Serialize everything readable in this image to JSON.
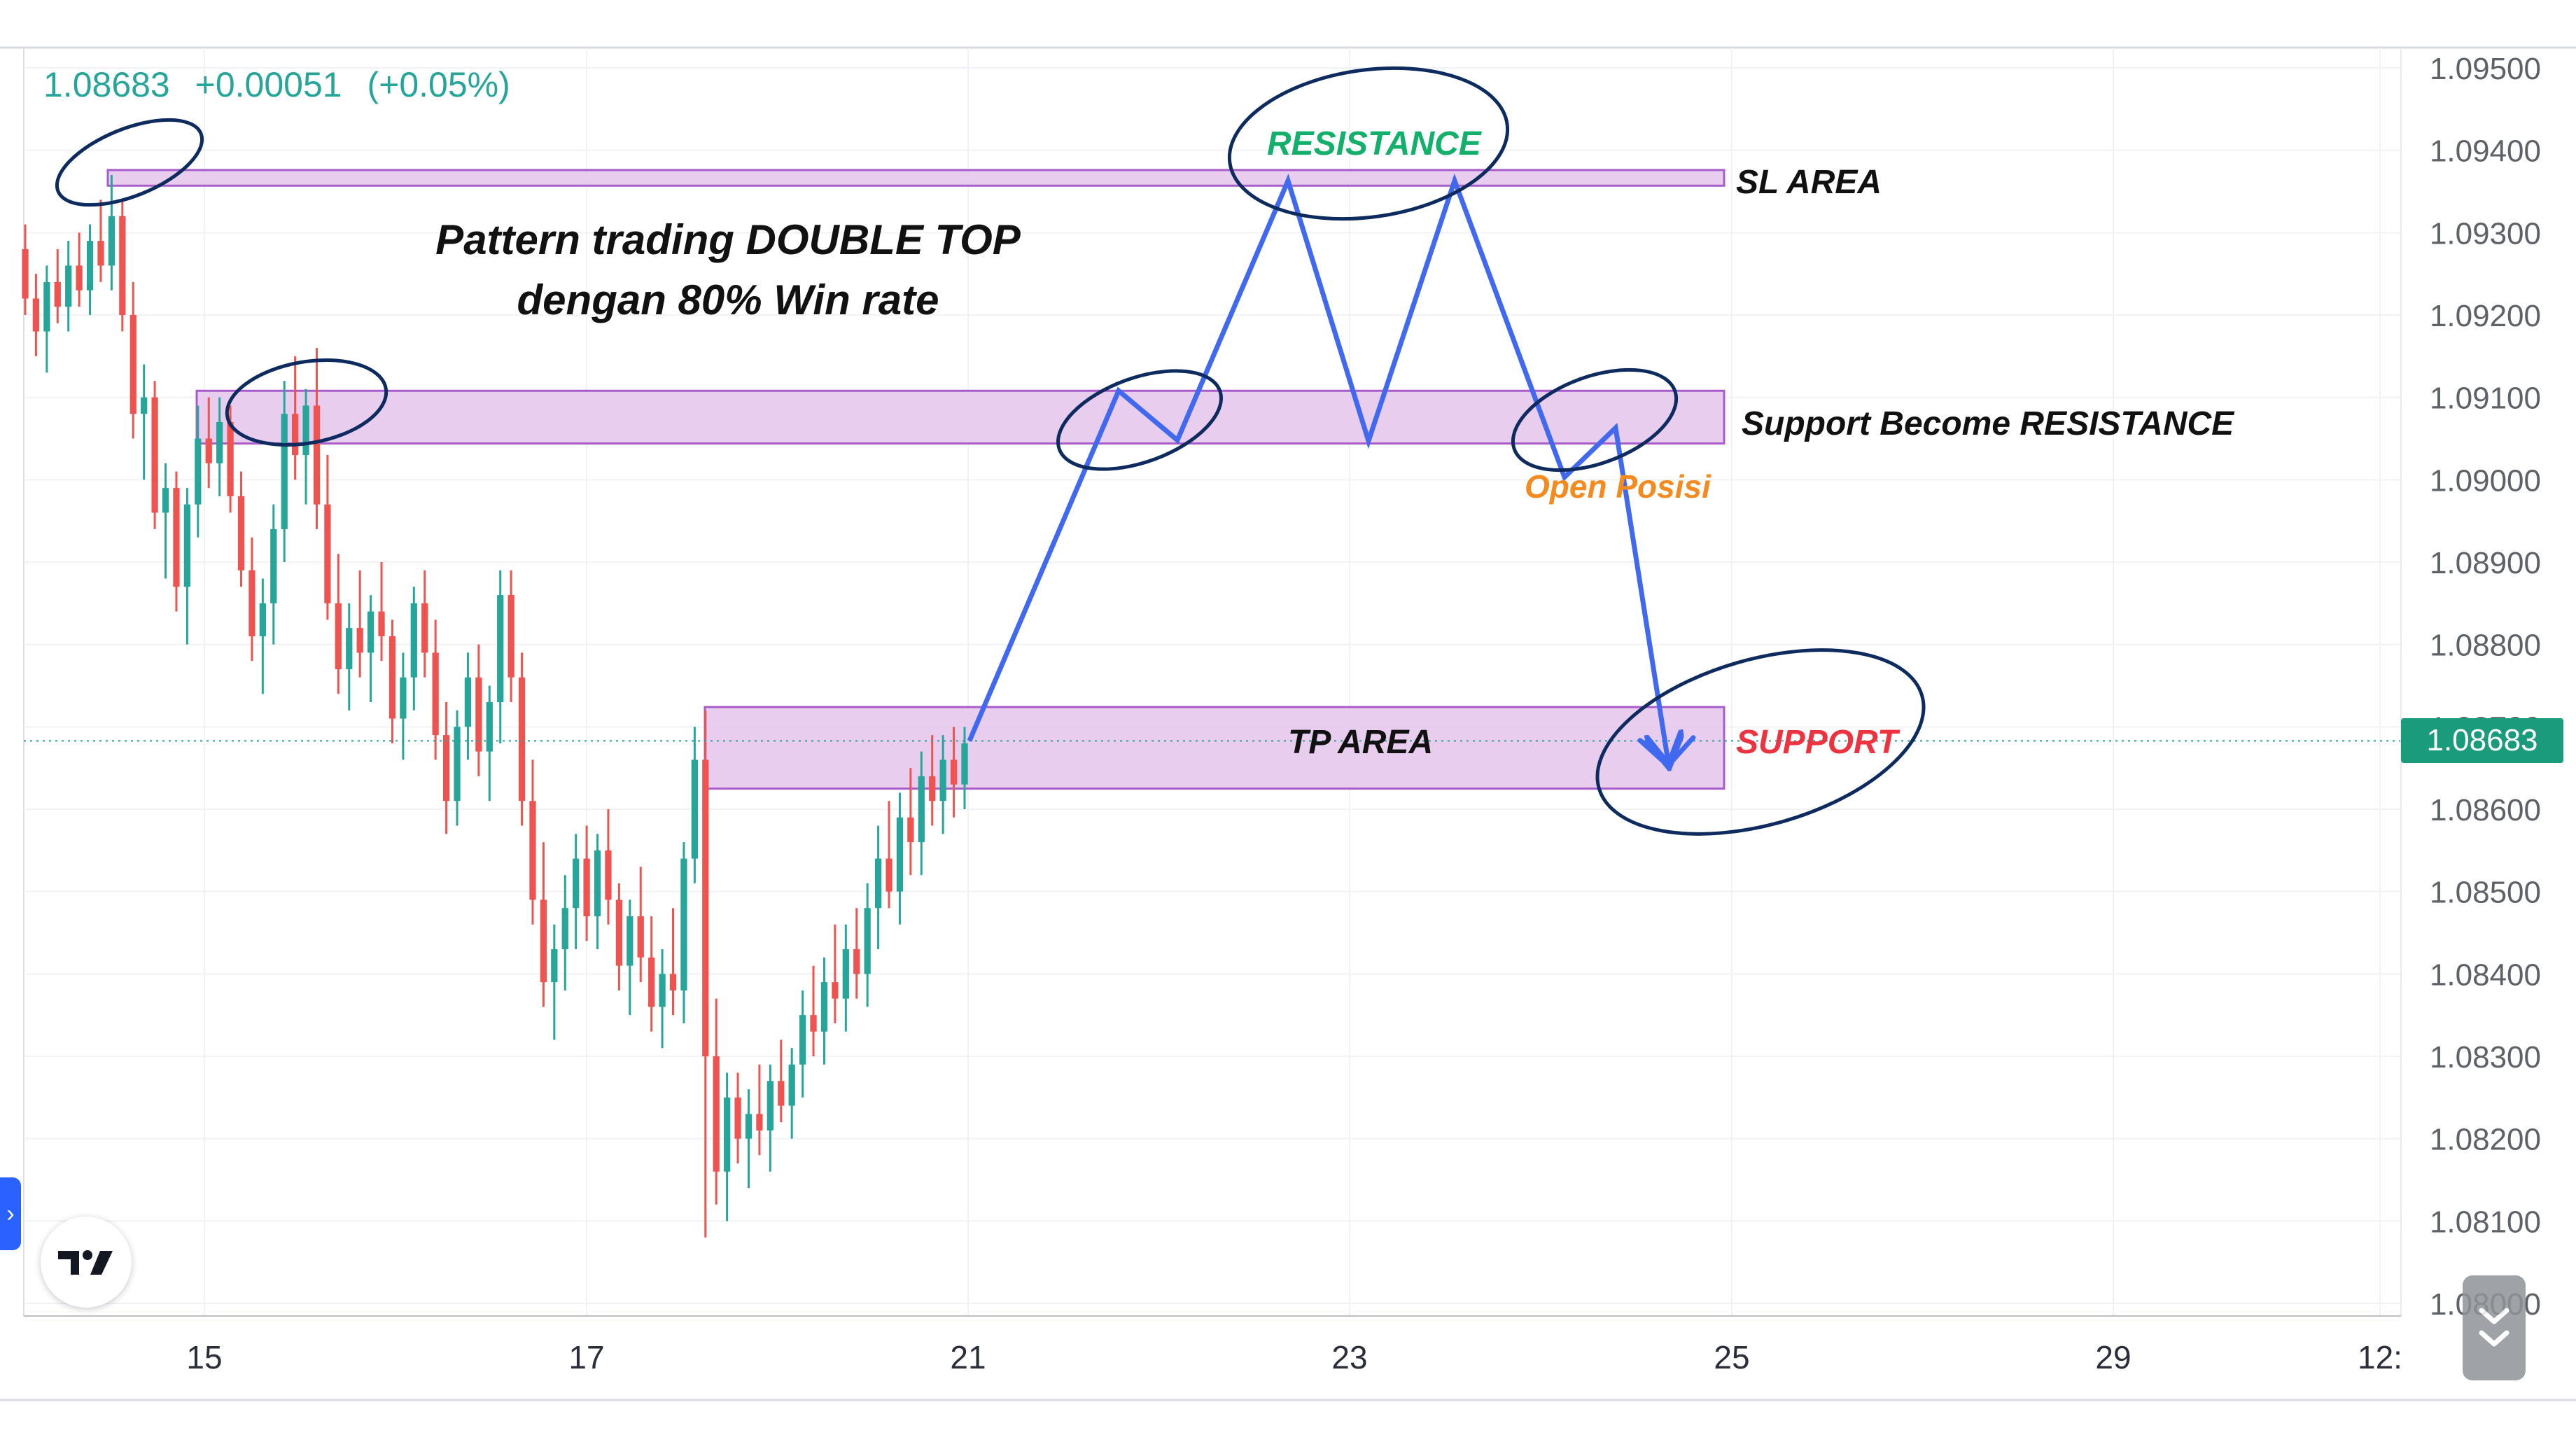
{
  "quote": {
    "price": "1.08683",
    "change": "+0.00051",
    "change_pct": "(+0.05%)",
    "current_price_tag": "1.08683"
  },
  "annotations": {
    "title_line1": "Pattern trading DOUBLE TOP",
    "title_line2": "dengan 80% Win rate",
    "resistance": "RESISTANCE",
    "sl_area": "SL AREA",
    "support_become_resistance": "Support Become RESISTANCE",
    "open_posisi": "Open Posisi",
    "tp_area": "TP AREA",
    "support": "SUPPORT"
  },
  "colors": {
    "up": "#26a69a",
    "down": "#ef5350",
    "zone_fill": "#e6c8ee",
    "zone_border": "#a04cc6",
    "projection_line": "#4169f0",
    "ellipse": "#0d2b5e",
    "resistance_text": "#13b06b",
    "support_text": "#ee3340",
    "open_text": "#f58a1f"
  },
  "chart_data": {
    "type": "candlestick",
    "symbol_price": 1.08683,
    "x_tick_labels": [
      "15",
      "17",
      "21",
      "23",
      "25",
      "29",
      "12:"
    ],
    "y_tick_labels": [
      "1.09500",
      "1.09400",
      "1.09300",
      "1.09200",
      "1.09100",
      "1.09000",
      "1.08900",
      "1.08800",
      "1.08700",
      "1.08600",
      "1.08500",
      "1.08400",
      "1.08300",
      "1.08200",
      "1.08100",
      "1.08000"
    ],
    "ylim": [
      1.08,
      1.095
    ],
    "grid": true,
    "candles": [
      [
        1.0928,
        1.0931,
        1.092,
        1.0922
      ],
      [
        1.0922,
        1.0925,
        1.0915,
        1.0918
      ],
      [
        1.0918,
        1.0926,
        1.0913,
        1.0924
      ],
      [
        1.0924,
        1.0928,
        1.0919,
        1.0921
      ],
      [
        1.0921,
        1.0929,
        1.0918,
        1.0926
      ],
      [
        1.0926,
        1.093,
        1.0921,
        1.0923
      ],
      [
        1.0923,
        1.0931,
        1.092,
        1.0929
      ],
      [
        1.0929,
        1.0934,
        1.0924,
        1.0926
      ],
      [
        1.0926,
        1.0937,
        1.0923,
        1.0932
      ],
      [
        1.0932,
        1.0934,
        1.0918,
        1.092
      ],
      [
        1.092,
        1.0924,
        1.0905,
        1.0908
      ],
      [
        1.0908,
        1.0914,
        1.09,
        1.091
      ],
      [
        1.091,
        1.0912,
        1.0894,
        1.0896
      ],
      [
        1.0896,
        1.0902,
        1.0888,
        1.0899
      ],
      [
        1.0899,
        1.0901,
        1.0884,
        1.0887
      ],
      [
        1.0887,
        1.0899,
        1.088,
        1.0897
      ],
      [
        1.0897,
        1.0909,
        1.0893,
        1.0905
      ],
      [
        1.0905,
        1.091,
        1.0899,
        1.0902
      ],
      [
        1.0902,
        1.091,
        1.0898,
        1.0907
      ],
      [
        1.0907,
        1.0909,
        1.0896,
        1.0898
      ],
      [
        1.0898,
        1.0901,
        1.0887,
        1.0889
      ],
      [
        1.0889,
        1.0893,
        1.0878,
        1.0881
      ],
      [
        1.0881,
        1.0888,
        1.0874,
        1.0885
      ],
      [
        1.0885,
        1.0897,
        1.088,
        1.0894
      ],
      [
        1.0894,
        1.0912,
        1.089,
        1.0908
      ],
      [
        1.0908,
        1.0915,
        1.09,
        1.0903
      ],
      [
        1.0903,
        1.0911,
        1.0897,
        1.0909
      ],
      [
        1.0909,
        1.0916,
        1.0894,
        1.0897
      ],
      [
        1.0897,
        1.0903,
        1.0883,
        1.0885
      ],
      [
        1.0885,
        1.0891,
        1.0874,
        1.0877
      ],
      [
        1.0877,
        1.0885,
        1.0872,
        1.0882
      ],
      [
        1.0882,
        1.0889,
        1.0876,
        1.0879
      ],
      [
        1.0879,
        1.0886,
        1.0873,
        1.0884
      ],
      [
        1.0884,
        1.089,
        1.0878,
        1.0881
      ],
      [
        1.0881,
        1.0883,
        1.0868,
        1.0871
      ],
      [
        1.0871,
        1.0879,
        1.0866,
        1.0876
      ],
      [
        1.0876,
        1.0887,
        1.0872,
        1.0885
      ],
      [
        1.0885,
        1.0889,
        1.0876,
        1.0879
      ],
      [
        1.0879,
        1.0883,
        1.0866,
        1.0869
      ],
      [
        1.0869,
        1.0873,
        1.0857,
        1.0861
      ],
      [
        1.0861,
        1.0872,
        1.0858,
        1.087
      ],
      [
        1.087,
        1.0879,
        1.0866,
        1.0876
      ],
      [
        1.0876,
        1.088,
        1.0864,
        1.0867
      ],
      [
        1.0867,
        1.0875,
        1.0861,
        1.0873
      ],
      [
        1.0873,
        1.0889,
        1.0868,
        1.0886
      ],
      [
        1.0886,
        1.0889,
        1.0873,
        1.0876
      ],
      [
        1.0876,
        1.0879,
        1.0858,
        1.0861
      ],
      [
        1.0861,
        1.0866,
        1.0846,
        1.0849
      ],
      [
        1.0849,
        1.0856,
        1.0836,
        1.0839
      ],
      [
        1.0839,
        1.0846,
        1.0832,
        1.0843
      ],
      [
        1.0843,
        1.0852,
        1.0838,
        1.0848
      ],
      [
        1.0848,
        1.0857,
        1.0843,
        1.0854
      ],
      [
        1.0854,
        1.0858,
        1.0844,
        1.0847
      ],
      [
        1.0847,
        1.0857,
        1.0843,
        1.0855
      ],
      [
        1.0855,
        1.086,
        1.0846,
        1.0849
      ],
      [
        1.0849,
        1.0851,
        1.0838,
        1.0841
      ],
      [
        1.0841,
        1.0849,
        1.0835,
        1.0847
      ],
      [
        1.0847,
        1.0853,
        1.0839,
        1.0842
      ],
      [
        1.0842,
        1.0847,
        1.0833,
        1.0836
      ],
      [
        1.0836,
        1.0843,
        1.0831,
        1.084
      ],
      [
        1.084,
        1.0848,
        1.0835,
        1.0838
      ],
      [
        1.0838,
        1.0856,
        1.0834,
        1.0854
      ],
      [
        1.0854,
        1.087,
        1.0851,
        1.0866
      ],
      [
        1.0866,
        1.0872,
        1.0808,
        1.083
      ],
      [
        1.083,
        1.0837,
        1.0812,
        1.0816
      ],
      [
        1.0816,
        1.0828,
        1.081,
        1.0825
      ],
      [
        1.0825,
        1.0828,
        1.0817,
        1.082
      ],
      [
        1.082,
        1.0826,
        1.0814,
        1.0823
      ],
      [
        1.0823,
        1.0829,
        1.0818,
        1.0821
      ],
      [
        1.0821,
        1.0829,
        1.0816,
        1.0827
      ],
      [
        1.0827,
        1.0832,
        1.0822,
        1.0824
      ],
      [
        1.0824,
        1.0831,
        1.082,
        1.0829
      ],
      [
        1.0829,
        1.0838,
        1.0825,
        1.0835
      ],
      [
        1.0835,
        1.0841,
        1.083,
        1.0833
      ],
      [
        1.0833,
        1.0842,
        1.0829,
        1.0839
      ],
      [
        1.0839,
        1.0846,
        1.0834,
        1.0837
      ],
      [
        1.0837,
        1.0846,
        1.0833,
        1.0843
      ],
      [
        1.0843,
        1.0848,
        1.0837,
        1.084
      ],
      [
        1.084,
        1.0851,
        1.0836,
        1.0848
      ],
      [
        1.0848,
        1.0858,
        1.0843,
        1.0854
      ],
      [
        1.0854,
        1.0861,
        1.0848,
        1.085
      ],
      [
        1.085,
        1.0862,
        1.0846,
        1.0859
      ],
      [
        1.0859,
        1.0865,
        1.0852,
        1.0856
      ],
      [
        1.0856,
        1.0867,
        1.0852,
        1.0864
      ],
      [
        1.0864,
        1.0869,
        1.0858,
        1.0861
      ],
      [
        1.0861,
        1.0869,
        1.0857,
        1.0866
      ],
      [
        1.0866,
        1.087,
        1.0859,
        1.0863
      ],
      [
        1.0863,
        1.087,
        1.086,
        1.0868
      ]
    ],
    "zones": [
      {
        "name": "sl-area-zone",
        "price_top": 1.09376,
        "price_bottom": 1.09357
      },
      {
        "name": "support-become-resistance-zone",
        "price_top": 1.09108,
        "price_bottom": 1.09044
      },
      {
        "name": "tp-area-zone",
        "price_top": 1.08724,
        "price_bottom": 1.08625
      }
    ],
    "projection_path": [
      1.08683,
      1.09108,
      1.09048,
      1.09363,
      1.09047,
      1.09363,
      1.09003,
      1.09063,
      1.08658
    ]
  }
}
